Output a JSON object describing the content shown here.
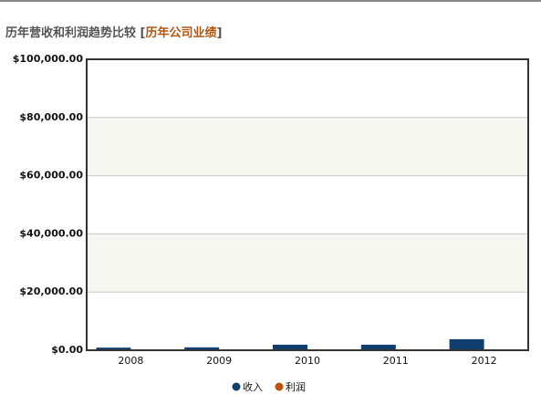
{
  "chart_data": {
    "type": "bar",
    "title": "历年营收和利润趋势比较 [",
    "title_link": "历年公司业绩",
    "title_end": "]",
    "categories": [
      "2008",
      "2009",
      "2010",
      "2011",
      "2012"
    ],
    "series": [
      {
        "name": "收入",
        "color": "#0f3f70",
        "values": [
          900,
          1000,
          1900,
          1900,
          3800
        ]
      },
      {
        "name": "利润",
        "color": "#c0500e",
        "values": [
          100,
          100,
          200,
          200,
          300
        ]
      }
    ],
    "ylim": [
      0,
      100000
    ],
    "yticks": [
      {
        "value": 0,
        "label": "$0.00"
      },
      {
        "value": 20000,
        "label": "$20,000.00"
      },
      {
        "value": 40000,
        "label": "$40,000.00"
      },
      {
        "value": 60000,
        "label": "$60,000.00"
      },
      {
        "value": 80000,
        "label": "$80,000.00"
      },
      {
        "value": 100000,
        "label": "$100,000.00"
      }
    ],
    "grid": true,
    "legend": "bottom"
  }
}
